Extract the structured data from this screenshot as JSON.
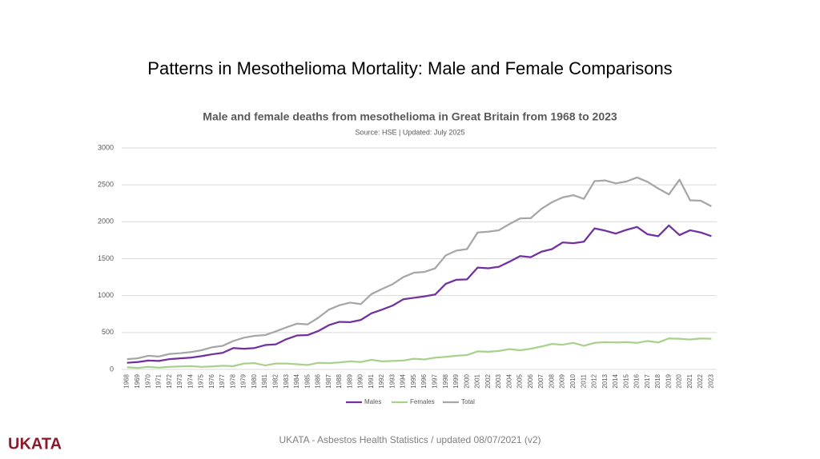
{
  "slide": {
    "title": "Patterns in Mesothelioma Mortality: Male and Female Comparisons",
    "footer": "UKATA - Asbestos Health Statistics / updated 08/07/2021 (v2)",
    "logo": "UKATA"
  },
  "chart_data": {
    "type": "line",
    "title": "Male and female deaths from mesothelioma in Great Britain from 1968 to 2023",
    "subtitle": "Source: HSE  |  Updated: July 2025",
    "categories": [
      "1968",
      "1969",
      "1970",
      "1971",
      "1972",
      "1973",
      "1974",
      "1975",
      "1976",
      "1977",
      "1978",
      "1979",
      "1980",
      "1981",
      "1982",
      "1983",
      "1984",
      "1985",
      "1986",
      "1987",
      "1988",
      "1989",
      "1990",
      "1991",
      "1992",
      "1993",
      "1994",
      "1995",
      "1996",
      "1997",
      "1998",
      "1999",
      "2000",
      "2001",
      "2002",
      "2003",
      "2004",
      "2005",
      "2006",
      "2007",
      "2008",
      "2009",
      "2010",
      "2011",
      "2012",
      "2013",
      "2014",
      "2015",
      "2016",
      "2017",
      "2018",
      "2019",
      "2020",
      "2021",
      "2022",
      "2023"
    ],
    "series": [
      {
        "name": "Males",
        "color": "#7030a0",
        "values": [
          90,
          100,
          120,
          115,
          140,
          150,
          160,
          180,
          205,
          225,
          290,
          280,
          290,
          330,
          340,
          410,
          460,
          465,
          520,
          600,
          645,
          640,
          670,
          760,
          810,
          865,
          950,
          970,
          990,
          1015,
          1160,
          1215,
          1220,
          1380,
          1370,
          1390,
          1460,
          1535,
          1520,
          1595,
          1630,
          1720,
          1710,
          1730,
          1910,
          1880,
          1840,
          1890,
          1930,
          1830,
          1805,
          1950,
          1820,
          1885,
          1855,
          1805
        ]
      },
      {
        "name": "Females",
        "color": "#a9d18e",
        "values": [
          30,
          20,
          35,
          25,
          35,
          40,
          45,
          35,
          40,
          50,
          45,
          80,
          85,
          55,
          80,
          80,
          70,
          60,
          90,
          85,
          95,
          110,
          100,
          130,
          110,
          115,
          120,
          145,
          135,
          160,
          170,
          185,
          195,
          245,
          240,
          250,
          275,
          260,
          280,
          310,
          345,
          335,
          360,
          320,
          360,
          370,
          365,
          370,
          360,
          385,
          365,
          420,
          415,
          405,
          420,
          415
        ]
      },
      {
        "name": "Total",
        "color": "#a6a6a6",
        "values": [
          140,
          150,
          185,
          175,
          210,
          220,
          235,
          260,
          300,
          320,
          385,
          430,
          455,
          465,
          515,
          570,
          620,
          610,
          700,
          810,
          870,
          905,
          885,
          1020,
          1090,
          1155,
          1250,
          1310,
          1320,
          1370,
          1545,
          1610,
          1630,
          1855,
          1865,
          1885,
          1970,
          2045,
          2050,
          2175,
          2265,
          2330,
          2360,
          2310,
          2550,
          2560,
          2520,
          2545,
          2600,
          2540,
          2450,
          2370,
          2570,
          2290,
          2285,
          2210
        ]
      }
    ],
    "ylim": [
      0,
      3000
    ],
    "yticks": [
      0,
      500,
      1000,
      1500,
      2000,
      2500,
      3000
    ],
    "grid": true,
    "legend": "bottom"
  }
}
